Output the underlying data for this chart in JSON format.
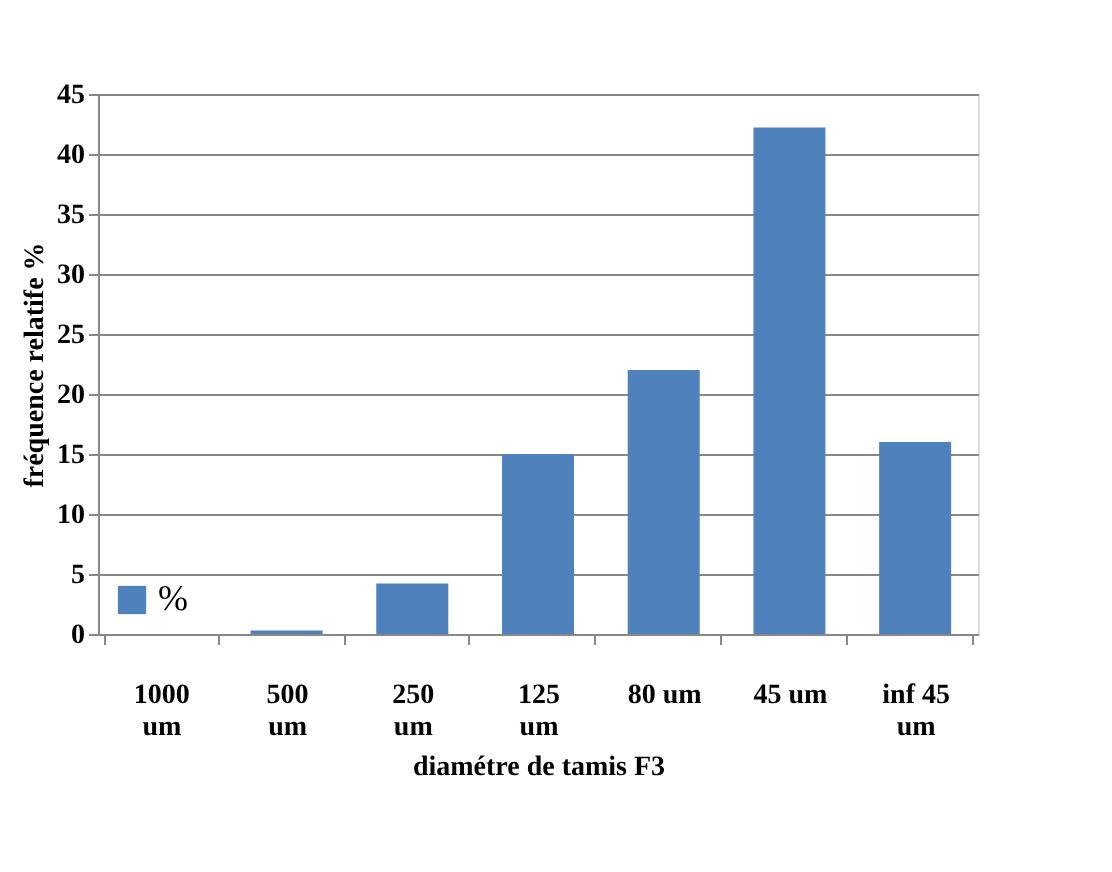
{
  "chart_data": {
    "type": "bar",
    "xlabel": "diamétre de tamis F3",
    "ylabel": "fréquence relatife %",
    "categories": [
      "1000 um",
      "500 um",
      "250 um",
      "125 um",
      "80 um",
      "45 um",
      "inf 45 um"
    ],
    "series": [
      {
        "name": "%",
        "color": "#4f81bd",
        "values": [
          0,
          0.3,
          4.2,
          15.0,
          22.0,
          42.2,
          16.0
        ]
      }
    ],
    "ylim": [
      0,
      45
    ],
    "yticks": [
      0,
      5,
      10,
      15,
      20,
      25,
      30,
      35,
      40,
      45
    ],
    "grid": "y",
    "legend": "bottom left"
  }
}
